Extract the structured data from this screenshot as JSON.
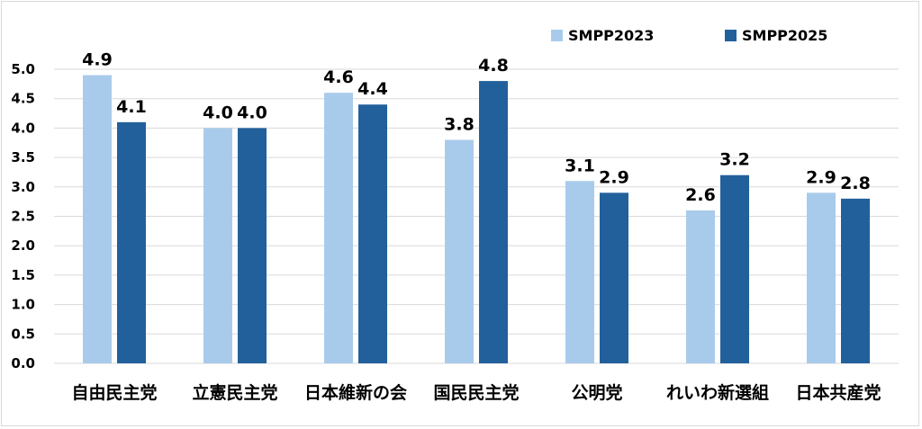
{
  "chart_data": {
    "type": "bar",
    "categories": [
      "自由民主党",
      "立憲民主党",
      "日本維新の会",
      "国民民主党",
      "公明党",
      "れいわ新選組",
      "日本共産党"
    ],
    "series": [
      {
        "name": "SMPP2023",
        "color": "#a9cbeb",
        "values": [
          4.9,
          4.0,
          4.6,
          3.8,
          3.1,
          2.6,
          2.9
        ],
        "labels": [
          "4.9",
          "4.0",
          "4.6",
          "3.8",
          "3.1",
          "2.6",
          "2.9"
        ]
      },
      {
        "name": "SMPP2025",
        "color": "#22609c",
        "values": [
          4.1,
          4.0,
          4.4,
          4.8,
          2.9,
          3.2,
          2.8
        ],
        "labels": [
          "4.1",
          "4.0",
          "4.4",
          "4.8",
          "2.9",
          "3.2",
          "2.8"
        ]
      }
    ],
    "yticks": [
      "0.0",
      "0.5",
      "1.0",
      "1.5",
      "2.0",
      "2.5",
      "3.0",
      "3.5",
      "4.0",
      "4.5",
      "5.0"
    ],
    "ylim": [
      0,
      5.0
    ],
    "grid": true,
    "legend": "top-right",
    "title": "",
    "xlabel": "",
    "ylabel": ""
  }
}
